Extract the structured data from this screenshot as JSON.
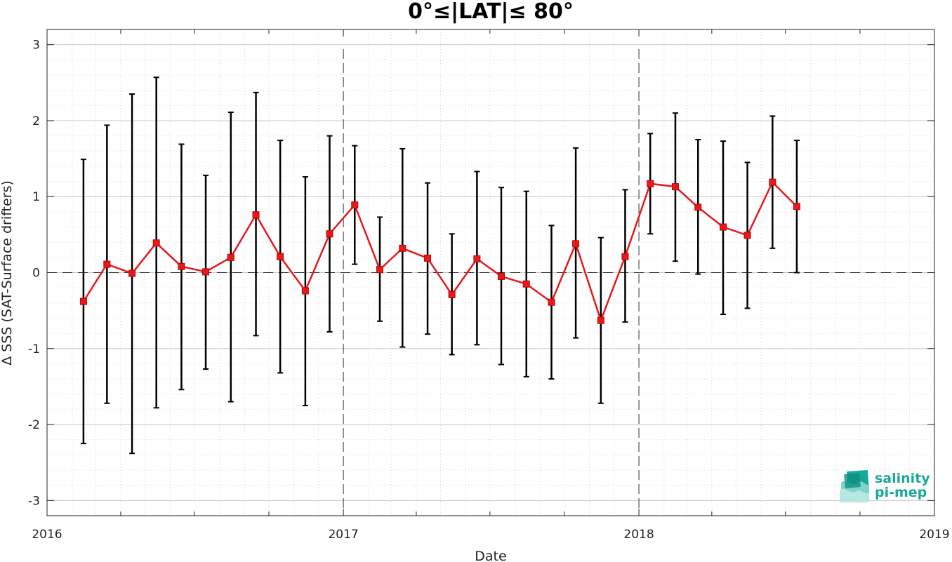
{
  "chart_data": {
    "type": "line",
    "title": "0°≤|LAT|≤ 80°",
    "xlabel": "Date",
    "ylabel": "Δ SSS (SAT-Surface drifters)",
    "xlim": [
      "2016-01-01",
      "2019-01-01"
    ],
    "ylim": [
      -3.2,
      3.2
    ],
    "x_ticks": [
      "2016",
      "2017",
      "2018",
      "2019"
    ],
    "y_ticks": [
      "-3",
      "-2",
      "-1",
      "0",
      "1",
      "2",
      "3"
    ],
    "grid": true,
    "reference_lines": {
      "horizontal_dashed_at": 0,
      "vertical_dashed_at": [
        "2017-01-01",
        "2018-01-01"
      ]
    },
    "series": [
      {
        "x": [
          "2016-02-15",
          "2016-03-15",
          "2016-04-15",
          "2016-05-15",
          "2016-06-15",
          "2016-07-15",
          "2016-08-15",
          "2016-09-15",
          "2016-10-15",
          "2016-11-15",
          "2016-12-15",
          "2017-01-15",
          "2017-02-15",
          "2017-03-15",
          "2017-04-15",
          "2017-05-15",
          "2017-06-15",
          "2017-07-15",
          "2017-08-15",
          "2017-09-15",
          "2017-10-15",
          "2017-11-15",
          "2017-12-15",
          "2018-01-15",
          "2018-02-15",
          "2018-03-15",
          "2018-04-15",
          "2018-05-15",
          "2018-06-15",
          "2018-07-15"
        ],
        "values": [
          -0.38,
          0.11,
          -0.01,
          0.39,
          0.08,
          0.01,
          0.2,
          0.76,
          0.21,
          -0.24,
          0.51,
          0.89,
          0.04,
          0.32,
          0.19,
          -0.29,
          0.18,
          -0.05,
          -0.15,
          -0.39,
          0.38,
          -0.63,
          0.21,
          1.17,
          1.13,
          0.86,
          0.6,
          0.49,
          1.19,
          0.87
        ],
        "upper": [
          1.49,
          1.94,
          2.35,
          2.57,
          1.69,
          1.28,
          2.11,
          2.37,
          1.74,
          1.26,
          1.8,
          1.67,
          0.73,
          1.63,
          1.18,
          0.51,
          1.33,
          1.12,
          1.07,
          0.62,
          1.64,
          0.46,
          1.09,
          1.83,
          2.1,
          1.75,
          1.73,
          1.45,
          2.06,
          1.74
        ],
        "lower": [
          -2.25,
          -1.72,
          -2.38,
          -1.78,
          -1.54,
          -1.27,
          -1.7,
          -0.83,
          -1.32,
          -1.75,
          -0.78,
          0.11,
          -0.64,
          -0.98,
          -0.81,
          -1.08,
          -0.95,
          -1.21,
          -1.37,
          -1.4,
          -0.86,
          -1.72,
          -0.65,
          0.51,
          0.15,
          -0.02,
          -0.55,
          -0.47,
          0.32,
          0.0
        ],
        "color": "#e41a1c",
        "marker": "square",
        "errorbar_color": "#000000"
      }
    ]
  },
  "logo": {
    "line1": "salinity",
    "line2": "pi-mep"
  }
}
